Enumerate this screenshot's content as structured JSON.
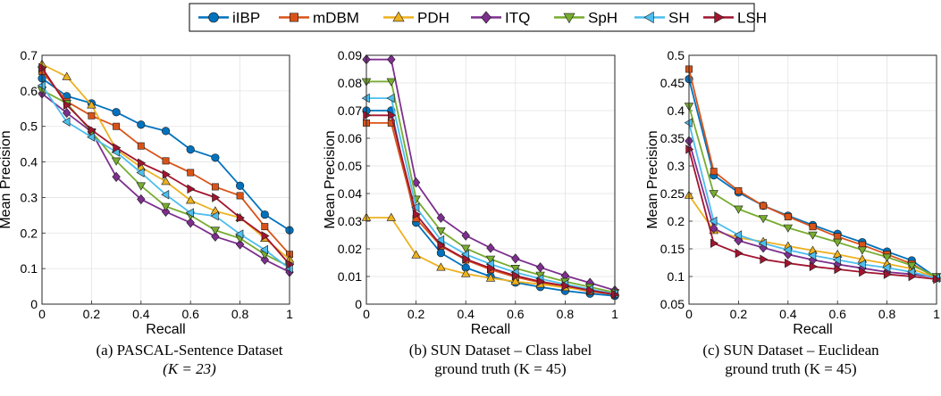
{
  "legend": {
    "series": [
      {
        "name": "iIBP",
        "color": "#0072BD",
        "marker": "circle"
      },
      {
        "name": "mDBM",
        "color": "#D95319",
        "marker": "square"
      },
      {
        "name": "PDH",
        "color": "#EDB120",
        "marker": "triangle-up"
      },
      {
        "name": "ITQ",
        "color": "#7E2F8E",
        "marker": "diamond"
      },
      {
        "name": "SpH",
        "color": "#77AC30",
        "marker": "triangle-down"
      },
      {
        "name": "SH",
        "color": "#4DBEEE",
        "marker": "triangle-left"
      },
      {
        "name": "LSH",
        "color": "#A2142F",
        "marker": "triangle-right"
      }
    ]
  },
  "captions": [
    {
      "line1": "(a) PASCAL-Sentence Dataset",
      "line2": "(K = 23)"
    },
    {
      "line1": "(b) SUN Dataset – Class label",
      "line2": "ground truth (K = 45)"
    },
    {
      "line1": "(c) SUN Dataset – Euclidean",
      "line2": "ground truth (K = 45)"
    }
  ],
  "chart_data": [
    {
      "type": "line",
      "xlabel": "Recall",
      "ylabel": "Mean Precision",
      "xlim": [
        0,
        1
      ],
      "ylim": [
        0,
        0.7
      ],
      "xticks": [
        "0",
        "0.2",
        "0.4",
        "0.6",
        "0.8",
        "1"
      ],
      "yticks": [
        "0",
        "0.1",
        "0.2",
        "0.3",
        "0.4",
        "0.5",
        "0.6",
        "0.7"
      ],
      "grid": true,
      "x": [
        0,
        0.1,
        0.2,
        0.3,
        0.4,
        0.5,
        0.6,
        0.7,
        0.8,
        0.9,
        1.0
      ],
      "series": [
        {
          "name": "iIBP",
          "values": [
            0.635,
            0.585,
            0.565,
            0.54,
            0.505,
            0.487,
            0.435,
            0.412,
            0.333,
            0.252,
            0.208
          ]
        },
        {
          "name": "mDBM",
          "values": [
            0.655,
            0.57,
            0.53,
            0.5,
            0.445,
            0.403,
            0.37,
            0.33,
            0.305,
            0.218,
            0.14
          ]
        },
        {
          "name": "PDH",
          "values": [
            0.675,
            0.64,
            0.56,
            0.435,
            0.385,
            0.345,
            0.292,
            0.262,
            0.243,
            0.185,
            0.126
          ]
        },
        {
          "name": "ITQ",
          "values": [
            0.592,
            0.538,
            0.485,
            0.358,
            0.295,
            0.26,
            0.229,
            0.19,
            0.168,
            0.125,
            0.09
          ]
        },
        {
          "name": "SpH",
          "values": [
            0.602,
            0.565,
            0.485,
            0.403,
            0.333,
            0.275,
            0.25,
            0.208,
            0.185,
            0.14,
            0.105
          ]
        },
        {
          "name": "SH",
          "values": [
            0.615,
            0.513,
            0.47,
            0.428,
            0.37,
            0.308,
            0.257,
            0.248,
            0.197,
            0.153,
            0.1
          ]
        },
        {
          "name": "LSH",
          "values": [
            0.665,
            0.56,
            0.49,
            0.44,
            0.397,
            0.365,
            0.324,
            0.3,
            0.243,
            0.192,
            0.112
          ]
        }
      ]
    },
    {
      "type": "line",
      "xlabel": "Recall",
      "ylabel": "Mean Precision",
      "xlim": [
        0,
        1
      ],
      "ylim": [
        0,
        0.09
      ],
      "xticks": [
        "0",
        "0.2",
        "0.4",
        "0.6",
        "0.8",
        "1"
      ],
      "yticks": [
        "0",
        "0.01",
        "0.02",
        "0.03",
        "0.04",
        "0.05",
        "0.06",
        "0.07",
        "0.08",
        "0.09"
      ],
      "grid": true,
      "x": [
        0,
        0.1,
        0.2,
        0.3,
        0.4,
        0.5,
        0.6,
        0.7,
        0.8,
        0.9,
        1.0
      ],
      "series": [
        {
          "name": "iIBP",
          "values": [
            0.07,
            0.07,
            0.0295,
            0.0185,
            0.0132,
            0.01,
            0.0078,
            0.0062,
            0.0048,
            0.0038,
            0.003
          ]
        },
        {
          "name": "mDBM",
          "values": [
            0.0655,
            0.0655,
            0.031,
            0.021,
            0.016,
            0.0125,
            0.0098,
            0.0078,
            0.0062,
            0.0046,
            0.0035
          ]
        },
        {
          "name": "PDH",
          "values": [
            0.0313,
            0.0313,
            0.0178,
            0.0133,
            0.011,
            0.0094,
            0.0082,
            0.0072,
            0.006,
            0.005,
            0.004
          ]
        },
        {
          "name": "ITQ",
          "values": [
            0.0885,
            0.0885,
            0.044,
            0.0312,
            0.0248,
            0.0203,
            0.0165,
            0.0133,
            0.0103,
            0.0077,
            0.005
          ]
        },
        {
          "name": "SpH",
          "values": [
            0.0805,
            0.0805,
            0.038,
            0.0265,
            0.0202,
            0.0163,
            0.013,
            0.0105,
            0.0082,
            0.0062,
            0.0042
          ]
        },
        {
          "name": "SH",
          "values": [
            0.0745,
            0.0745,
            0.035,
            0.0232,
            0.018,
            0.0145,
            0.0115,
            0.0092,
            0.0072,
            0.0054,
            0.0037
          ]
        },
        {
          "name": "LSH",
          "values": [
            0.0683,
            0.0683,
            0.0325,
            0.0213,
            0.0163,
            0.013,
            0.0103,
            0.0082,
            0.0066,
            0.005,
            0.0035
          ]
        }
      ]
    },
    {
      "type": "line",
      "xlabel": "Recall",
      "ylabel": "Mean Precision",
      "xlim": [
        0,
        1
      ],
      "ylim": [
        0.05,
        0.5
      ],
      "xticks": [
        "0",
        "0.2",
        "0.4",
        "0.6",
        "0.8",
        "1"
      ],
      "yticks": [
        "0.05",
        "0.1",
        "0.15",
        "0.2",
        "0.25",
        "0.3",
        "0.35",
        "0.4",
        "0.45",
        "0.5"
      ],
      "grid": true,
      "x": [
        0,
        0.1,
        0.2,
        0.3,
        0.4,
        0.5,
        0.6,
        0.7,
        0.8,
        0.9,
        1.0
      ],
      "series": [
        {
          "name": "iIBP",
          "values": [
            0.457,
            0.283,
            0.252,
            0.228,
            0.21,
            0.193,
            0.177,
            0.162,
            0.145,
            0.129,
            0.098
          ]
        },
        {
          "name": "mDBM",
          "values": [
            0.475,
            0.29,
            0.255,
            0.228,
            0.208,
            0.19,
            0.172,
            0.157,
            0.14,
            0.123,
            0.097
          ]
        },
        {
          "name": "PDH",
          "values": [
            0.247,
            0.183,
            0.17,
            0.163,
            0.155,
            0.147,
            0.14,
            0.131,
            0.123,
            0.114,
            0.097
          ]
        },
        {
          "name": "ITQ",
          "values": [
            0.345,
            0.187,
            0.165,
            0.152,
            0.14,
            0.13,
            0.122,
            0.115,
            0.108,
            0.104,
            0.098
          ]
        },
        {
          "name": "SpH",
          "values": [
            0.408,
            0.25,
            0.222,
            0.205,
            0.188,
            0.175,
            0.162,
            0.148,
            0.135,
            0.12,
            0.1
          ]
        },
        {
          "name": "SH",
          "values": [
            0.378,
            0.2,
            0.175,
            0.16,
            0.148,
            0.138,
            0.13,
            0.122,
            0.116,
            0.108,
            0.097
          ]
        },
        {
          "name": "LSH",
          "values": [
            0.33,
            0.16,
            0.142,
            0.131,
            0.124,
            0.118,
            0.113,
            0.108,
            0.104,
            0.1,
            0.095
          ]
        }
      ]
    }
  ]
}
